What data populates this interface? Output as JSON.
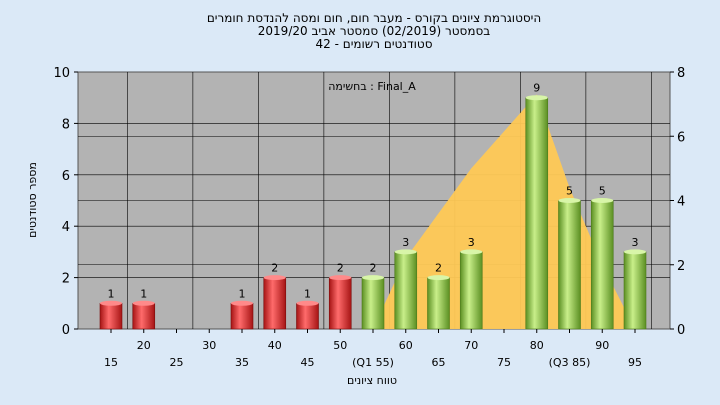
{
  "chart_data": {
    "type": "bar",
    "title_lines": [
      "היסטוגרמת ציונים בקורס - מעבר חום, חום ומסה להנדסת חומרים",
      "בסמסטר  (02/2019)  סמסטר אביב 2019/20",
      "סטודנטים רשומים - 42"
    ],
    "ylabel": "מספר סטודנטים",
    "xlabel": "טווח ציונים",
    "exam_label": "בחשימה : Final_A",
    "ylim": [
      0,
      10
    ],
    "y_ticks": [
      0,
      2,
      4,
      6,
      8,
      10
    ],
    "y2lim": [
      0,
      8
    ],
    "y2_ticks": [
      0,
      2,
      4,
      6,
      8
    ],
    "categories": [
      "15",
      "20",
      "25",
      "30",
      "35",
      "40",
      "45",
      "50",
      "(Q1 55)",
      "60",
      "65",
      "70",
      "75",
      "80",
      "(Q3 85)",
      "90",
      "95"
    ],
    "bin_values": [
      15,
      20,
      25,
      30,
      35,
      40,
      45,
      50,
      55,
      60,
      65,
      70,
      75,
      80,
      85,
      90,
      95
    ],
    "values": [
      1,
      1,
      0,
      0,
      1,
      2,
      1,
      2,
      2,
      3,
      2,
      3,
      0,
      9,
      5,
      5,
      3
    ],
    "value_labels": [
      "1",
      "1",
      "",
      "",
      "1",
      "2",
      "1",
      "2",
      "2",
      "3",
      "2",
      "3",
      "",
      "9",
      "5",
      "5",
      "3"
    ],
    "fail_threshold": 55,
    "fail_color": "#dd2a2a",
    "pass_color": "#8cc63f",
    "area_series": {
      "x": [
        55,
        60,
        70,
        80,
        85,
        90,
        95
      ],
      "values": [
        0,
        2.2,
        5,
        7.3,
        4.4,
        2,
        0
      ],
      "color": "#ffc955"
    },
    "plot_bg": "#b3b3b3",
    "grid": true
  }
}
